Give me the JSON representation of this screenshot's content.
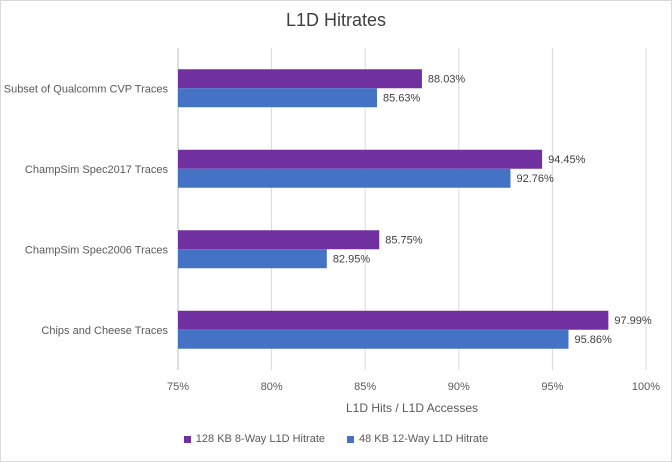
{
  "chart_data": {
    "type": "bar",
    "orientation": "horizontal",
    "title": "L1D Hitrates",
    "xlabel": "L1D Hits / L1D Accesses",
    "ylabel": "",
    "xlim": [
      75,
      100
    ],
    "xticks": [
      "75%",
      "80%",
      "85%",
      "90%",
      "95%",
      "100%"
    ],
    "categories": [
      "Subset of Qualcomm CVP Traces",
      "ChampSim Spec2017 Traces",
      "ChampSim Spec2006 Traces",
      "Chips and Cheese Traces"
    ],
    "series": [
      {
        "name": "128 KB 8-Way L1D Hitrate",
        "color": "#7030a0",
        "values": [
          88.03,
          94.45,
          85.75,
          97.99
        ],
        "labels": [
          "88.03%",
          "94.45%",
          "85.75%",
          "97.99%"
        ]
      },
      {
        "name": "48 KB 12-Way L1D Hitrate",
        "color": "#4472c4",
        "values": [
          85.63,
          92.76,
          82.95,
          95.86
        ],
        "labels": [
          "85.63%",
          "92.76%",
          "82.95%",
          "95.86%"
        ]
      }
    ],
    "grid": true,
    "legend_position": "bottom"
  }
}
